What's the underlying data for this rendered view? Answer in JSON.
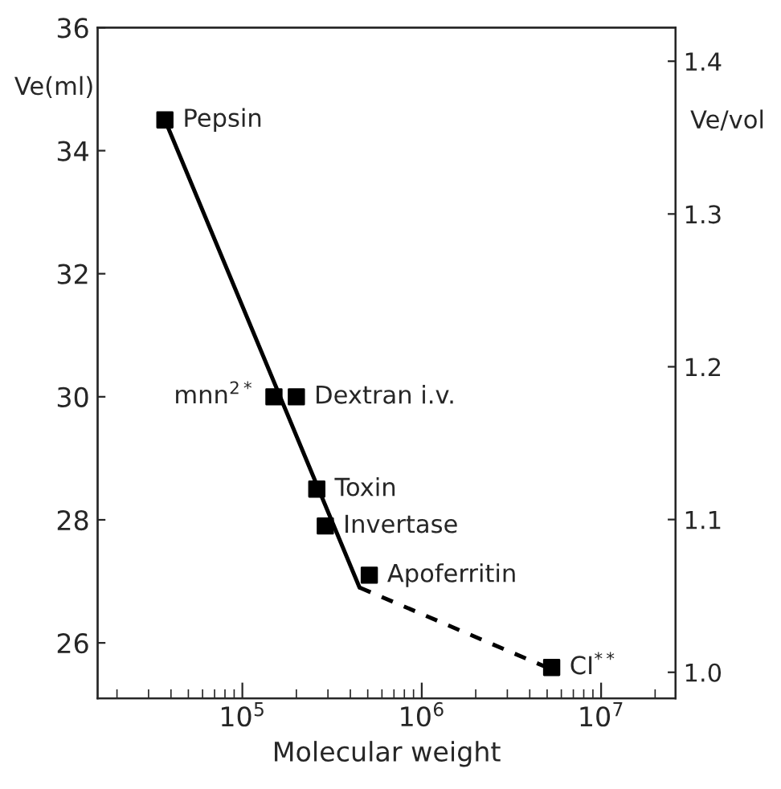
{
  "chart_data": {
    "type": "scatter",
    "xlabel": "Molecular weight",
    "ylabel": "Ve(ml)",
    "y2label": "Ve/vol",
    "log": "x",
    "marker": "square",
    "series": [
      {
        "type": "line",
        "color": "#000000",
        "line_style": "solid",
        "marker": "none",
        "x": [
          37000,
          450000
        ],
        "values": [
          34.5,
          26.9
        ]
      },
      {
        "type": "line",
        "color": "#000000",
        "line_style": "dashed",
        "marker": "none",
        "x": [
          450000,
          5000000
        ],
        "values": [
          26.9,
          25.6
        ]
      },
      {
        "type": "scatter",
        "color": "#000000",
        "x": [
          37000,
          150000,
          200000,
          260000,
          290000,
          510000,
          5300000
        ],
        "values": [
          34.5,
          30.0,
          30.0,
          28.5,
          27.9,
          27.1,
          25.6
        ]
      }
    ],
    "annotations": [
      {
        "text": "Pepsin",
        "x": 37000,
        "y": 34.5
      },
      {
        "text": "mnn$^{2*}$",
        "x": 150000,
        "y": 30.0
      },
      {
        "text": "Dextran i.v.",
        "x": 200000,
        "y": 30.0
      },
      {
        "text": "Toxin",
        "x": 260000,
        "y": 28.5
      },
      {
        "text": "Invertase",
        "x": 290000,
        "y": 27.9
      },
      {
        "text": "Apoferritin",
        "x": 510000,
        "y": 27.1
      },
      {
        "text": "CI$^{**}$",
        "x": 5300000,
        "y": 25.6
      }
    ],
    "xlim": [
      15600,
      26000000
    ],
    "xticks": [
      {
        "value": 100000,
        "label": "10$^{5}$"
      },
      {
        "value": 1000000,
        "label": "10$^{6}$"
      },
      {
        "value": 10000000,
        "label": "10$^{7}$"
      }
    ],
    "ylim": [
      25.1,
      36
    ],
    "yticks": [
      26,
      28,
      30,
      32,
      34,
      36
    ],
    "y2lim": [
      0.983,
      1.422
    ],
    "y2ticks": [
      {
        "value": 1.0,
        "label": "1.0"
      },
      1.1,
      1.2,
      1.3,
      1.4
    ],
    "grid": false,
    "legend": false
  }
}
